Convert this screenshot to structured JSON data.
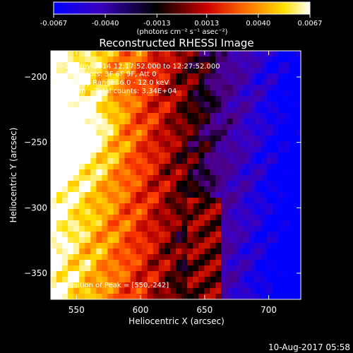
{
  "chart_data": {
    "type": "heatmap",
    "title": "Reconstructed RHESSI Image",
    "xlabel": "Heliocentric X (arcsec)",
    "ylabel": "Heliocentric Y (arcsec)",
    "xlim": [
      530,
      725
    ],
    "ylim": [
      -370,
      -180
    ],
    "x_ticks": [
      550,
      600,
      650,
      700
    ],
    "y_ticks": [
      -200,
      -250,
      -300,
      -350
    ],
    "colorbar": {
      "units": "(photons cm⁻² s⁻¹ asec⁻²)",
      "ticks": [
        "-0.0067",
        "-0.0040",
        "-0.0013",
        "0.0013",
        "0.0040",
        "0.0067"
      ],
      "range": [
        -0.0067,
        0.0067
      ]
    },
    "annotations": [
      "23-Nov-2014 12:17:52.000 to 12:27:52.000",
      "Detectors: 3F 6F 9F, Att 0",
      "Energy Range: 6.0 - 12.0 keV",
      "Clean    Total counts: 3.34E+04",
      "Position of Peak = [550,-242]"
    ],
    "peak": [
      550,
      -242
    ],
    "grid": false,
    "colormap": [
      "#0000ff",
      "#4400aa",
      "#000000",
      "#d00000",
      "#ff7000",
      "#ffe000",
      "#ffffff"
    ]
  },
  "footer_timestamp": "10-Aug-2017 05:58"
}
